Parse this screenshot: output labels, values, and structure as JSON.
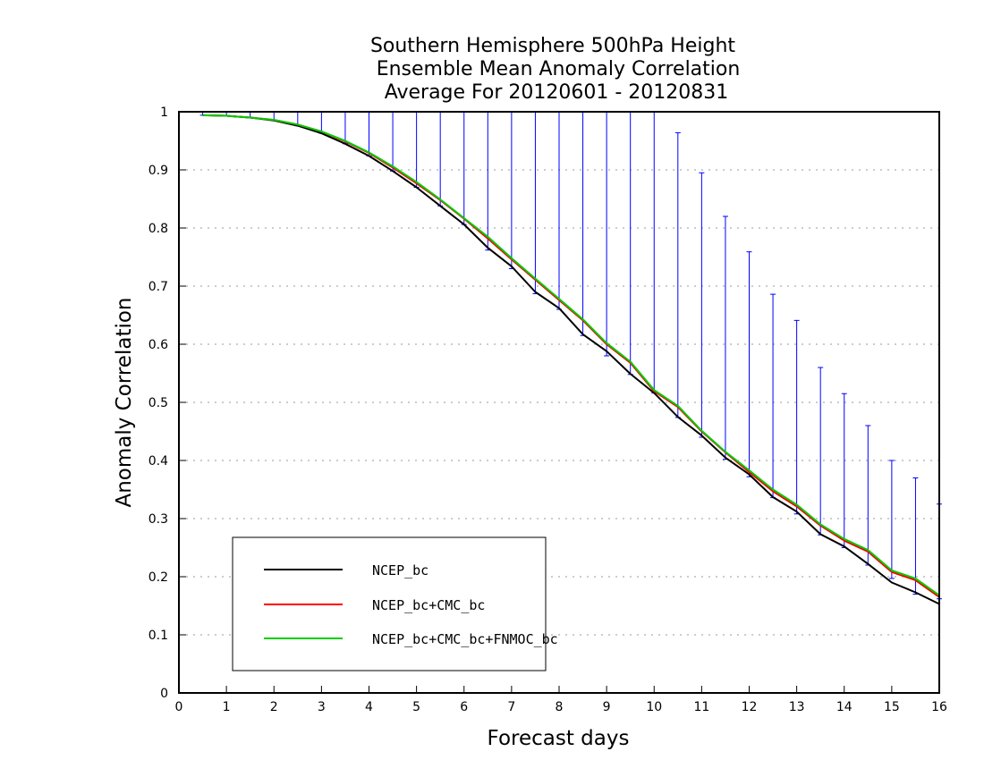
{
  "chart_data": {
    "type": "line",
    "title_lines": [
      "Southern Hemisphere 500hPa Height",
      "Ensemble Mean Anomaly Correlation",
      "Average For 20120601 - 20120831"
    ],
    "xlabel": "Forecast days",
    "ylabel": "Anomaly Correlation",
    "xlim": [
      0,
      16
    ],
    "ylim": [
      0,
      1
    ],
    "x_ticks": [
      "0",
      "1",
      "2",
      "3",
      "4",
      "5",
      "6",
      "7",
      "8",
      "9",
      "10",
      "11",
      "12",
      "13",
      "14",
      "15",
      "16"
    ],
    "y_ticks": [
      "0",
      "0.1",
      "0.2",
      "0.3",
      "0.4",
      "0.5",
      "0.6",
      "0.7",
      "0.8",
      "0.9",
      "1"
    ],
    "grid": "horizontal dotted",
    "legend_position": "bottom-left",
    "x": [
      0.5,
      1,
      1.5,
      2,
      2.5,
      3,
      3.5,
      4,
      4.5,
      5,
      5.5,
      6,
      6.5,
      7,
      7.5,
      8,
      8.5,
      9,
      9.5,
      10,
      10.5,
      11,
      11.5,
      12,
      12.5,
      13,
      13.5,
      14,
      14.5,
      15,
      15.5,
      16
    ],
    "series": [
      {
        "name": "NCEP_bc",
        "color": "#000000",
        "values": [
          0.994,
          0.993,
          0.99,
          0.985,
          0.976,
          0.963,
          0.945,
          0.924,
          0.898,
          0.87,
          0.838,
          0.806,
          0.766,
          0.734,
          0.69,
          0.662,
          0.617,
          0.588,
          0.549,
          0.516,
          0.475,
          0.443,
          0.405,
          0.376,
          0.337,
          0.312,
          0.273,
          0.252,
          0.222,
          0.19,
          0.173,
          0.153
        ]
      },
      {
        "name": "NCEP_bc+CMC_bc",
        "color": "#ff0000",
        "values": [
          0.994,
          0.993,
          0.99,
          0.986,
          0.978,
          0.966,
          0.949,
          0.929,
          0.904,
          0.877,
          0.848,
          0.816,
          0.782,
          0.746,
          0.711,
          0.676,
          0.641,
          0.6,
          0.568,
          0.519,
          0.492,
          0.45,
          0.414,
          0.38,
          0.347,
          0.321,
          0.288,
          0.262,
          0.243,
          0.208,
          0.194,
          0.165
        ]
      },
      {
        "name": "NCEP_bc+CMC_bc+FNMOC_bc",
        "color": "#00cc00",
        "values": [
          0.994,
          0.993,
          0.99,
          0.986,
          0.978,
          0.966,
          0.95,
          0.93,
          0.906,
          0.879,
          0.849,
          0.817,
          0.785,
          0.748,
          0.713,
          0.678,
          0.643,
          0.602,
          0.57,
          0.521,
          0.494,
          0.451,
          0.415,
          0.383,
          0.35,
          0.324,
          0.29,
          0.265,
          0.246,
          0.211,
          0.197,
          0.168
        ]
      }
    ],
    "error_bars": {
      "color": "#0000ff",
      "lower": [
        0.994,
        0.993,
        0.99,
        0.985,
        0.976,
        0.963,
        0.945,
        0.924,
        0.898,
        0.87,
        0.838,
        0.806,
        0.762,
        0.73,
        0.687,
        0.66,
        0.615,
        0.58,
        0.548,
        0.516,
        0.474,
        0.44,
        0.402,
        0.372,
        0.336,
        0.308,
        0.272,
        0.25,
        0.22,
        0.197,
        0.17,
        0.162
      ],
      "upper": [
        1,
        1,
        1,
        1,
        1,
        1,
        1,
        1,
        1,
        1,
        1,
        1,
        1,
        1,
        1,
        1,
        1,
        1,
        1,
        1,
        0.964,
        0.895,
        0.82,
        0.759,
        0.686,
        0.641,
        0.56,
        0.515,
        0.46,
        0.4,
        0.37,
        0.325
      ]
    }
  }
}
